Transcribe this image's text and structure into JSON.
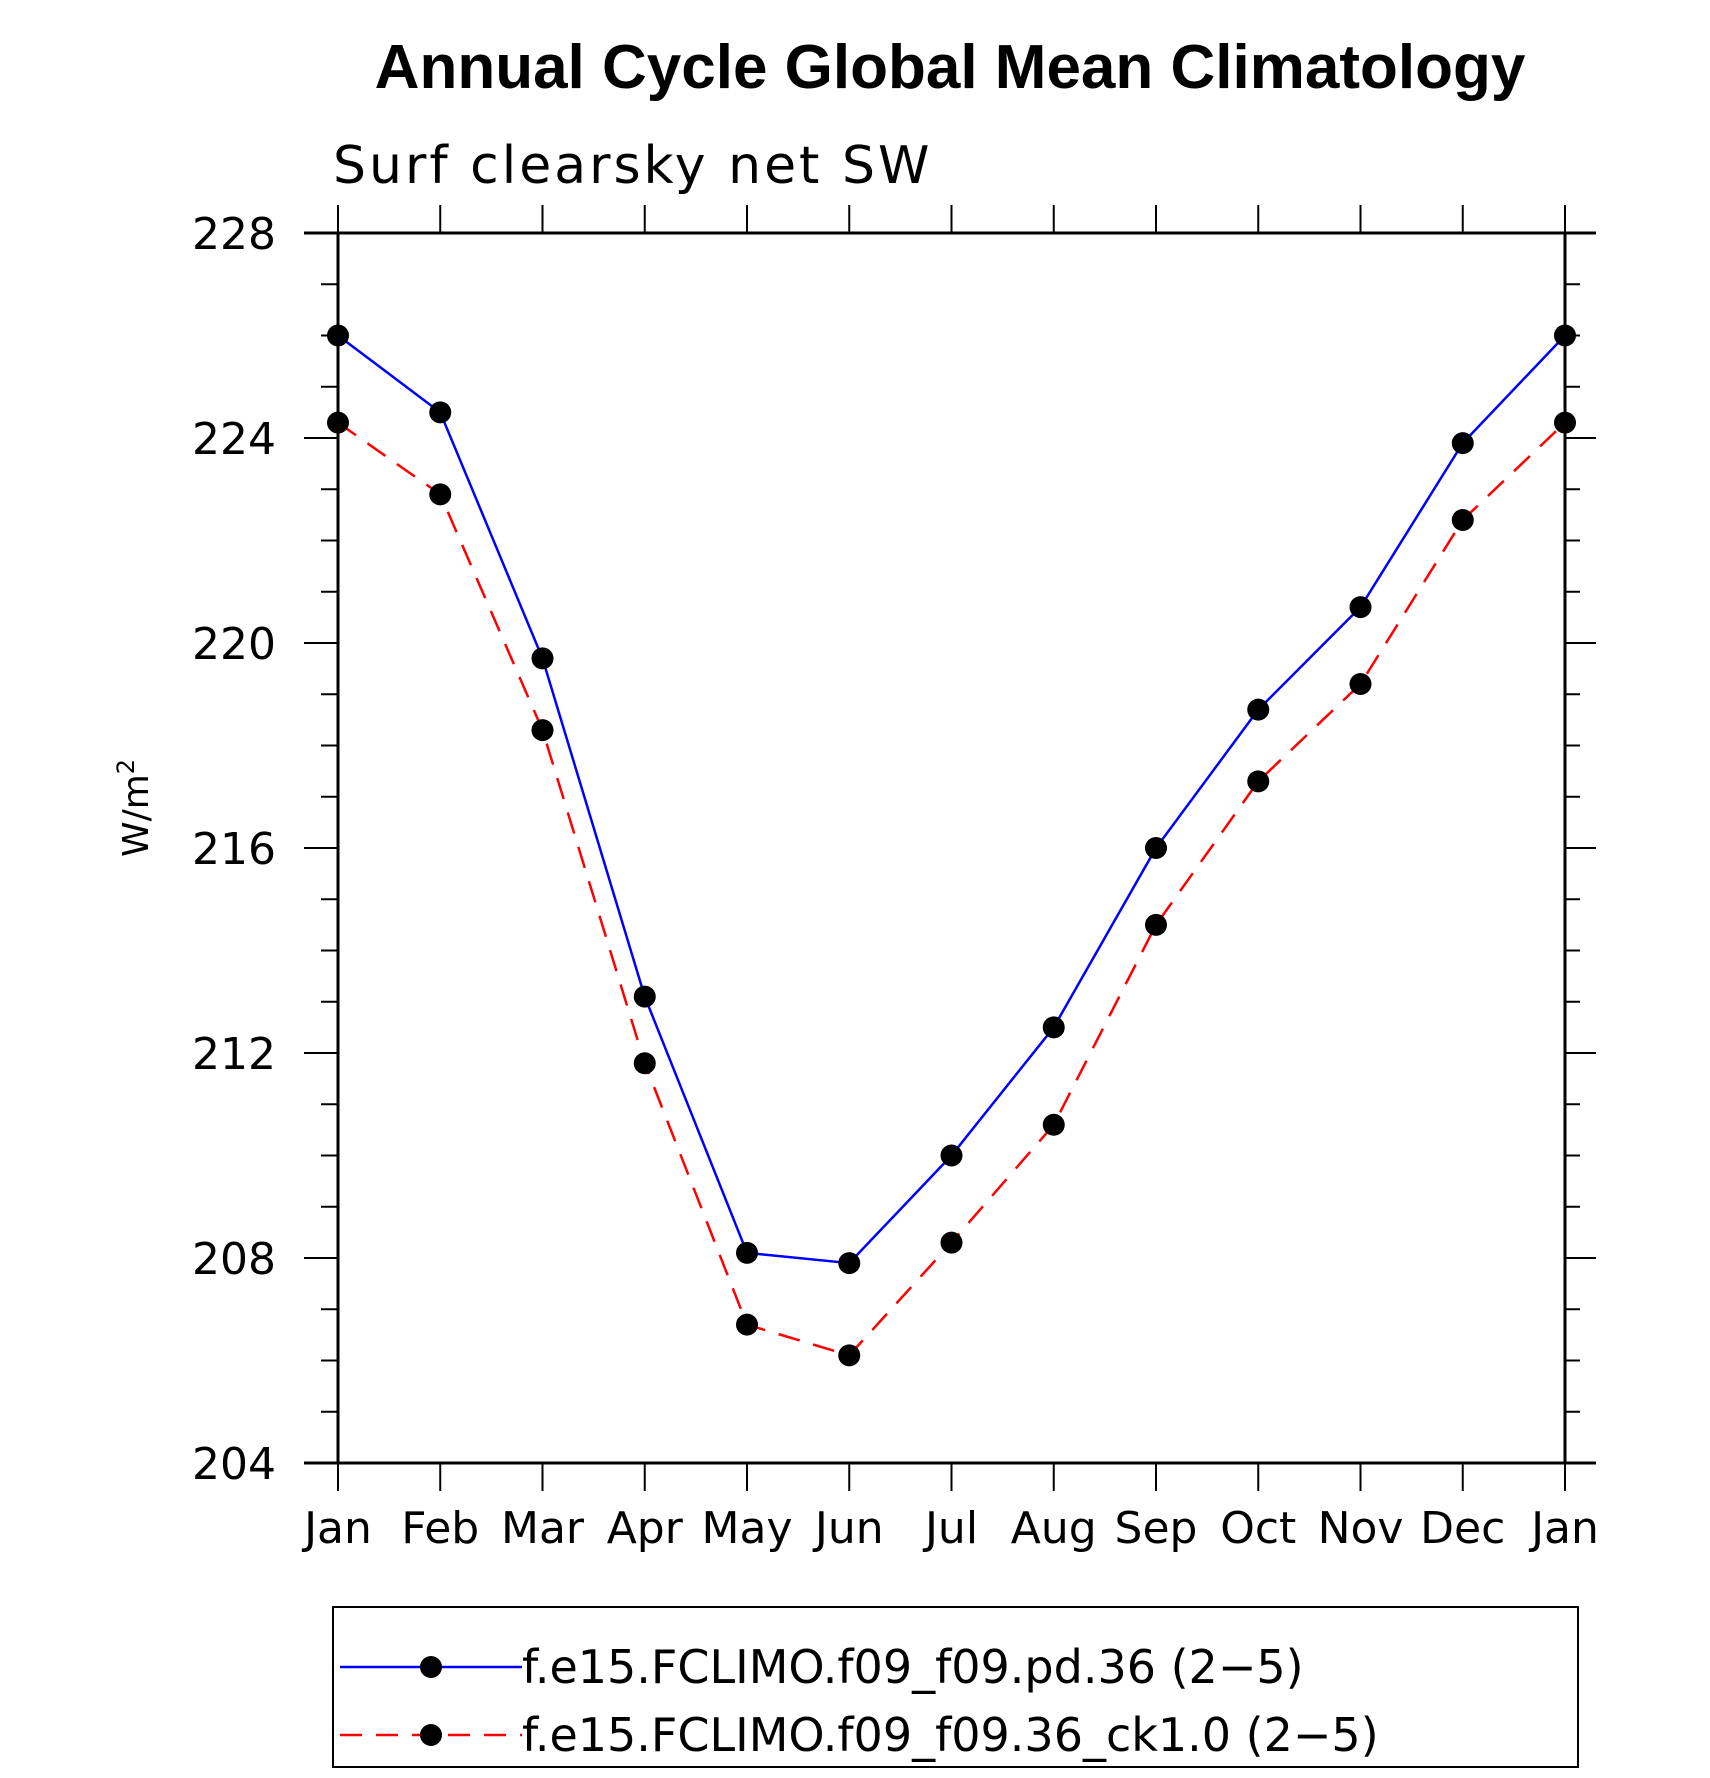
{
  "chart_data": {
    "type": "line",
    "title": "Annual Cycle Global Mean Climatology",
    "subtitle": "Surf clearsky net SW",
    "xlabel": "",
    "ylabel": "W/m",
    "ylabel_superscript": "2",
    "categories": [
      "Jan",
      "Feb",
      "Mar",
      "Apr",
      "May",
      "Jun",
      "Jul",
      "Aug",
      "Sep",
      "Oct",
      "Nov",
      "Dec",
      "Jan"
    ],
    "ylim": [
      204,
      228
    ],
    "yticks": [
      204,
      208,
      212,
      216,
      220,
      224,
      228
    ],
    "series": [
      {
        "name": "f.e15.FCLIMO.f09_f09.pd.36 (2−5)",
        "color": "#0000ff",
        "dash": "solid",
        "marker": "filled-circle",
        "values": [
          226.0,
          224.5,
          219.7,
          213.1,
          208.1,
          207.9,
          210.0,
          212.5,
          216.0,
          218.7,
          220.7,
          223.9,
          226.0
        ]
      },
      {
        "name": "f.e15.FCLIMO.f09_f09.36_ck1.0 (2−5)",
        "color": "#ff0000",
        "dash": "dashed",
        "marker": "filled-circle",
        "values": [
          224.3,
          222.9,
          218.3,
          211.8,
          206.7,
          206.1,
          208.3,
          210.6,
          214.5,
          217.3,
          219.2,
          222.4,
          224.3
        ]
      }
    ],
    "grid": false,
    "legend_position": "bottom"
  }
}
